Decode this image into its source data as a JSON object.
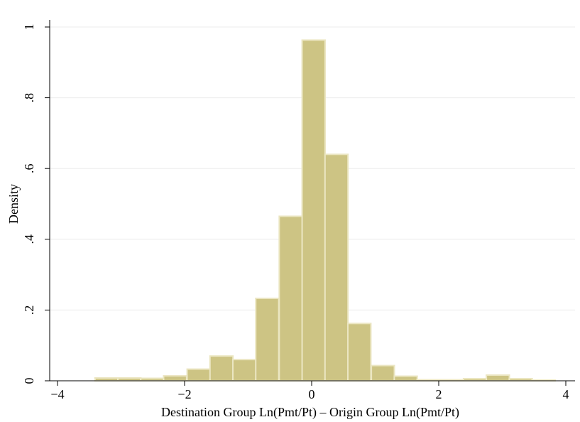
{
  "chart_data": {
    "type": "bar",
    "subtype": "histogram",
    "xlabel": "Destination Group Ln(Pmt/Pt) – Origin Group Ln(Pmt/Pt)",
    "ylabel": "Density",
    "xlim": [
      -4.2,
      4.1
    ],
    "ylim": [
      0,
      1.0
    ],
    "x_ticks": [
      -4,
      -2,
      0,
      2,
      4
    ],
    "x_tick_labels": [
      "−4",
      "−2",
      "0",
      "2",
      "4"
    ],
    "y_ticks": [
      0,
      0.2,
      0.4,
      0.6,
      0.8,
      1
    ],
    "y_tick_labels": [
      "0",
      ".2",
      ".4",
      ".6",
      ".8",
      "1"
    ],
    "grid": true,
    "colors": {
      "bar_fill": "#cdc484",
      "bar_stroke": "#ebe6c2",
      "grid": "#ececec",
      "axis": "#000000"
    },
    "bin_width": 0.362,
    "bins": [
      {
        "start": -3.41,
        "value": 0.008
      },
      {
        "start": -3.05,
        "value": 0.008
      },
      {
        "start": -2.69,
        "value": 0.007
      },
      {
        "start": -2.33,
        "value": 0.014
      },
      {
        "start": -1.96,
        "value": 0.033
      },
      {
        "start": -1.6,
        "value": 0.07
      },
      {
        "start": -1.24,
        "value": 0.06
      },
      {
        "start": -0.88,
        "value": 0.233
      },
      {
        "start": -0.51,
        "value": 0.465
      },
      {
        "start": -0.15,
        "value": 0.963
      },
      {
        "start": 0.21,
        "value": 0.64
      },
      {
        "start": 0.57,
        "value": 0.162
      },
      {
        "start": 0.94,
        "value": 0.043
      },
      {
        "start": 1.3,
        "value": 0.013
      },
      {
        "start": 1.66,
        "value": 0.003
      },
      {
        "start": 2.02,
        "value": 0.003
      },
      {
        "start": 2.39,
        "value": 0.006
      },
      {
        "start": 2.75,
        "value": 0.016
      },
      {
        "start": 3.11,
        "value": 0.006
      },
      {
        "start": 3.47,
        "value": 0.002
      }
    ]
  }
}
